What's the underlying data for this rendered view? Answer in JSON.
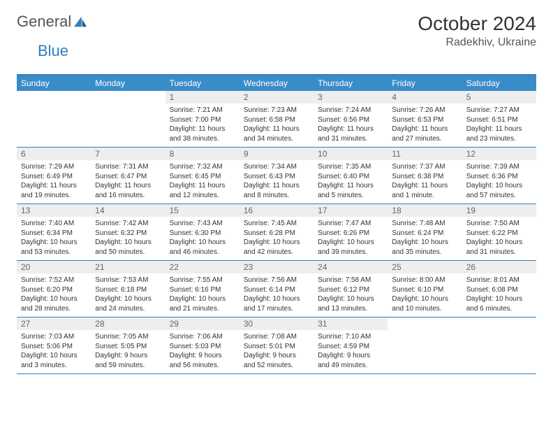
{
  "logo": {
    "text1": "General",
    "text2": "Blue"
  },
  "header": {
    "month": "October 2024",
    "location": "Radekhiv, Ukraine"
  },
  "colors": {
    "accent": "#3a8cc9",
    "border": "#2f7ec0",
    "numBg": "#eeeeee"
  },
  "dayNames": [
    "Sunday",
    "Monday",
    "Tuesday",
    "Wednesday",
    "Thursday",
    "Friday",
    "Saturday"
  ],
  "weeks": [
    [
      null,
      null,
      {
        "n": "1",
        "sr": "Sunrise: 7:21 AM",
        "ss": "Sunset: 7:00 PM",
        "dl": "Daylight: 11 hours and 38 minutes."
      },
      {
        "n": "2",
        "sr": "Sunrise: 7:23 AM",
        "ss": "Sunset: 6:58 PM",
        "dl": "Daylight: 11 hours and 34 minutes."
      },
      {
        "n": "3",
        "sr": "Sunrise: 7:24 AM",
        "ss": "Sunset: 6:56 PM",
        "dl": "Daylight: 11 hours and 31 minutes."
      },
      {
        "n": "4",
        "sr": "Sunrise: 7:26 AM",
        "ss": "Sunset: 6:53 PM",
        "dl": "Daylight: 11 hours and 27 minutes."
      },
      {
        "n": "5",
        "sr": "Sunrise: 7:27 AM",
        "ss": "Sunset: 6:51 PM",
        "dl": "Daylight: 11 hours and 23 minutes."
      }
    ],
    [
      {
        "n": "6",
        "sr": "Sunrise: 7:29 AM",
        "ss": "Sunset: 6:49 PM",
        "dl": "Daylight: 11 hours and 19 minutes."
      },
      {
        "n": "7",
        "sr": "Sunrise: 7:31 AM",
        "ss": "Sunset: 6:47 PM",
        "dl": "Daylight: 11 hours and 16 minutes."
      },
      {
        "n": "8",
        "sr": "Sunrise: 7:32 AM",
        "ss": "Sunset: 6:45 PM",
        "dl": "Daylight: 11 hours and 12 minutes."
      },
      {
        "n": "9",
        "sr": "Sunrise: 7:34 AM",
        "ss": "Sunset: 6:43 PM",
        "dl": "Daylight: 11 hours and 8 minutes."
      },
      {
        "n": "10",
        "sr": "Sunrise: 7:35 AM",
        "ss": "Sunset: 6:40 PM",
        "dl": "Daylight: 11 hours and 5 minutes."
      },
      {
        "n": "11",
        "sr": "Sunrise: 7:37 AM",
        "ss": "Sunset: 6:38 PM",
        "dl": "Daylight: 11 hours and 1 minute."
      },
      {
        "n": "12",
        "sr": "Sunrise: 7:39 AM",
        "ss": "Sunset: 6:36 PM",
        "dl": "Daylight: 10 hours and 57 minutes."
      }
    ],
    [
      {
        "n": "13",
        "sr": "Sunrise: 7:40 AM",
        "ss": "Sunset: 6:34 PM",
        "dl": "Daylight: 10 hours and 53 minutes."
      },
      {
        "n": "14",
        "sr": "Sunrise: 7:42 AM",
        "ss": "Sunset: 6:32 PM",
        "dl": "Daylight: 10 hours and 50 minutes."
      },
      {
        "n": "15",
        "sr": "Sunrise: 7:43 AM",
        "ss": "Sunset: 6:30 PM",
        "dl": "Daylight: 10 hours and 46 minutes."
      },
      {
        "n": "16",
        "sr": "Sunrise: 7:45 AM",
        "ss": "Sunset: 6:28 PM",
        "dl": "Daylight: 10 hours and 42 minutes."
      },
      {
        "n": "17",
        "sr": "Sunrise: 7:47 AM",
        "ss": "Sunset: 6:26 PM",
        "dl": "Daylight: 10 hours and 39 minutes."
      },
      {
        "n": "18",
        "sr": "Sunrise: 7:48 AM",
        "ss": "Sunset: 6:24 PM",
        "dl": "Daylight: 10 hours and 35 minutes."
      },
      {
        "n": "19",
        "sr": "Sunrise: 7:50 AM",
        "ss": "Sunset: 6:22 PM",
        "dl": "Daylight: 10 hours and 31 minutes."
      }
    ],
    [
      {
        "n": "20",
        "sr": "Sunrise: 7:52 AM",
        "ss": "Sunset: 6:20 PM",
        "dl": "Daylight: 10 hours and 28 minutes."
      },
      {
        "n": "21",
        "sr": "Sunrise: 7:53 AM",
        "ss": "Sunset: 6:18 PM",
        "dl": "Daylight: 10 hours and 24 minutes."
      },
      {
        "n": "22",
        "sr": "Sunrise: 7:55 AM",
        "ss": "Sunset: 6:16 PM",
        "dl": "Daylight: 10 hours and 21 minutes."
      },
      {
        "n": "23",
        "sr": "Sunrise: 7:56 AM",
        "ss": "Sunset: 6:14 PM",
        "dl": "Daylight: 10 hours and 17 minutes."
      },
      {
        "n": "24",
        "sr": "Sunrise: 7:58 AM",
        "ss": "Sunset: 6:12 PM",
        "dl": "Daylight: 10 hours and 13 minutes."
      },
      {
        "n": "25",
        "sr": "Sunrise: 8:00 AM",
        "ss": "Sunset: 6:10 PM",
        "dl": "Daylight: 10 hours and 10 minutes."
      },
      {
        "n": "26",
        "sr": "Sunrise: 8:01 AM",
        "ss": "Sunset: 6:08 PM",
        "dl": "Daylight: 10 hours and 6 minutes."
      }
    ],
    [
      {
        "n": "27",
        "sr": "Sunrise: 7:03 AM",
        "ss": "Sunset: 5:06 PM",
        "dl": "Daylight: 10 hours and 3 minutes."
      },
      {
        "n": "28",
        "sr": "Sunrise: 7:05 AM",
        "ss": "Sunset: 5:05 PM",
        "dl": "Daylight: 9 hours and 59 minutes."
      },
      {
        "n": "29",
        "sr": "Sunrise: 7:06 AM",
        "ss": "Sunset: 5:03 PM",
        "dl": "Daylight: 9 hours and 56 minutes."
      },
      {
        "n": "30",
        "sr": "Sunrise: 7:08 AM",
        "ss": "Sunset: 5:01 PM",
        "dl": "Daylight: 9 hours and 52 minutes."
      },
      {
        "n": "31",
        "sr": "Sunrise: 7:10 AM",
        "ss": "Sunset: 4:59 PM",
        "dl": "Daylight: 9 hours and 49 minutes."
      },
      null,
      null
    ]
  ]
}
